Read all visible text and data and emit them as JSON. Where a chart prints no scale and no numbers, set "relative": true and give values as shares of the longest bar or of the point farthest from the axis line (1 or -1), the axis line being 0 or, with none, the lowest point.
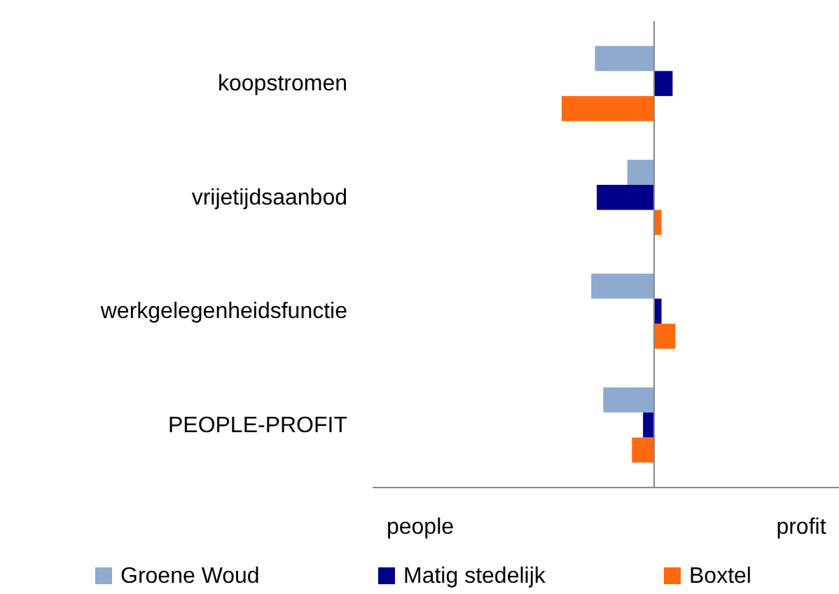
{
  "chart_data": {
    "type": "bar",
    "orientation": "horizontal",
    "relative": true,
    "categories": [
      "koopstromen",
      "vrijetijdsaanbod",
      "werkgelegenheidsfunctie",
      "PEOPLE-PROFIT"
    ],
    "series": [
      {
        "name": "Groene Woud",
        "color": "#8eaacf",
        "values": [
          -0.64,
          -0.29,
          -0.68,
          -0.55
        ]
      },
      {
        "name": "Matig stedelijk",
        "color": "#00008b",
        "values": [
          0.2,
          -0.62,
          0.08,
          -0.12
        ]
      },
      {
        "name": "Boxtel",
        "color": "#ff6a10",
        "values": [
          -1,
          0.08,
          0.23,
          -0.24
        ]
      }
    ],
    "annotations": [
      "people",
      "profit"
    ],
    "legend": "bottom"
  }
}
